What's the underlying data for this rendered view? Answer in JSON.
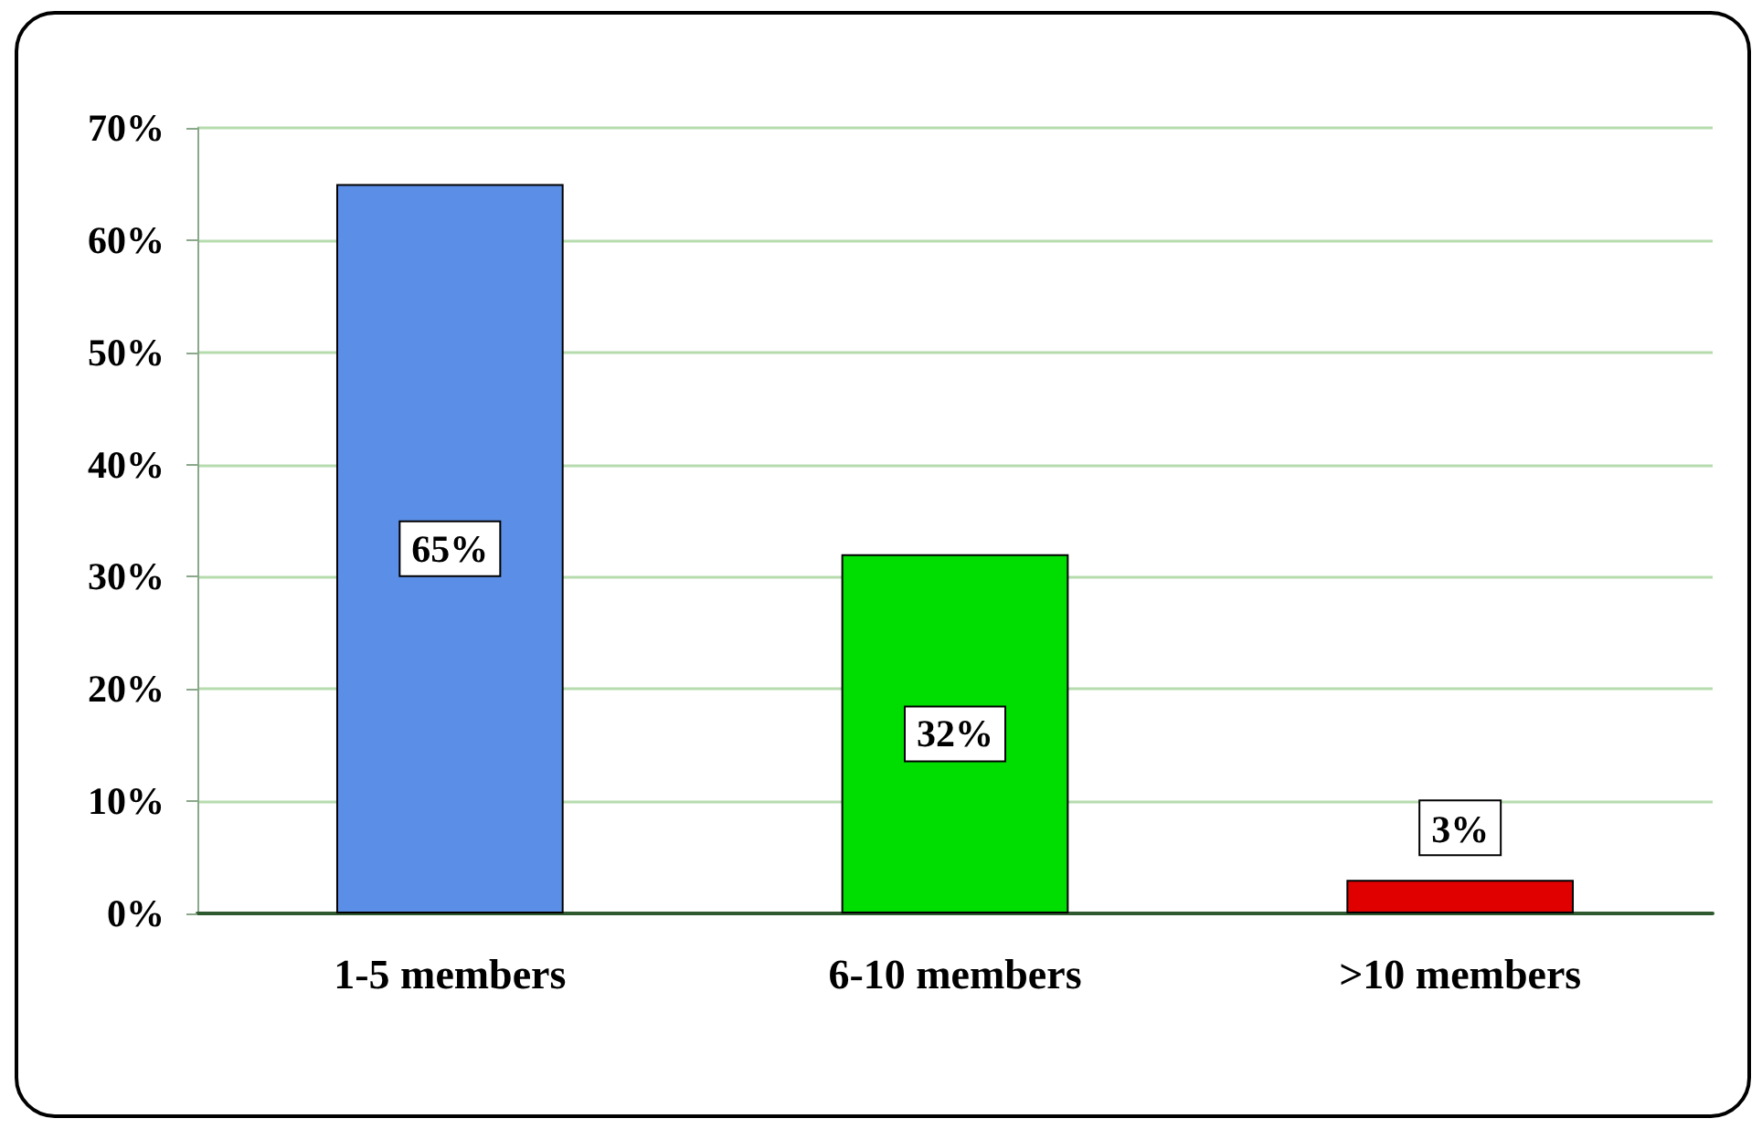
{
  "chart_data": {
    "type": "bar",
    "categories": [
      "1-5 members",
      "6-10 members",
      ">10 members"
    ],
    "values": [
      65,
      32,
      3
    ],
    "colors": [
      "#5b8ee6",
      "#00dd00",
      "#e00000"
    ],
    "value_labels": [
      "65%",
      "32%",
      "3%"
    ],
    "ylim": [
      0,
      70
    ],
    "yticks": [
      {
        "value": 0,
        "label": "0%"
      },
      {
        "value": 10,
        "label": "10%"
      },
      {
        "value": 20,
        "label": "20%"
      },
      {
        "value": 30,
        "label": "30%"
      },
      {
        "value": 40,
        "label": "40%"
      },
      {
        "value": 50,
        "label": "50%"
      },
      {
        "value": 60,
        "label": "60%"
      },
      {
        "value": 70,
        "label": "70%"
      }
    ],
    "grid": "y"
  }
}
